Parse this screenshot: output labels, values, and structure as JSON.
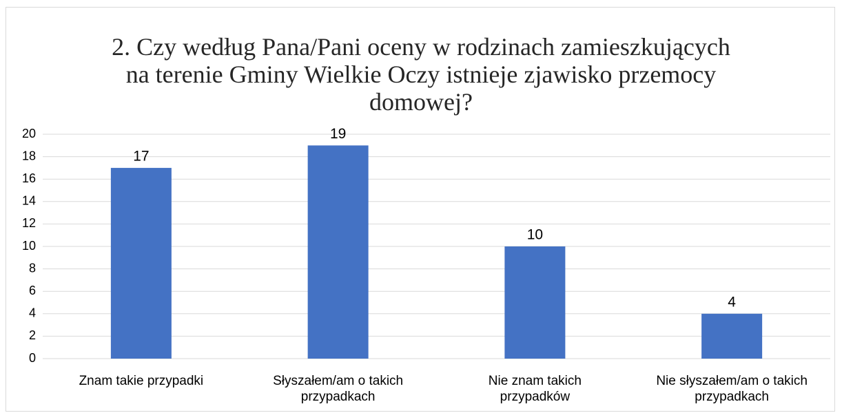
{
  "chart_data": {
    "type": "bar",
    "title": "2. Czy według Pana/Pani oceny w rodzinach zamieszkujących\nna terenie Gminy Wielkie Oczy istnieje zjawisko przemocy\ndomowej?",
    "categories": [
      "Znam takie przypadki",
      "Słyszałem/am o takich\nprzypadkach",
      "Nie znam takich\nprzypadków",
      "Nie słyszałem/am o takich\nprzypadkach"
    ],
    "values": [
      17,
      19,
      10,
      4
    ],
    "color": "#4472c4",
    "ylim": [
      0,
      20
    ],
    "yticks": [
      0,
      2,
      4,
      6,
      8,
      10,
      12,
      14,
      16,
      18,
      20
    ],
    "grid": true
  }
}
